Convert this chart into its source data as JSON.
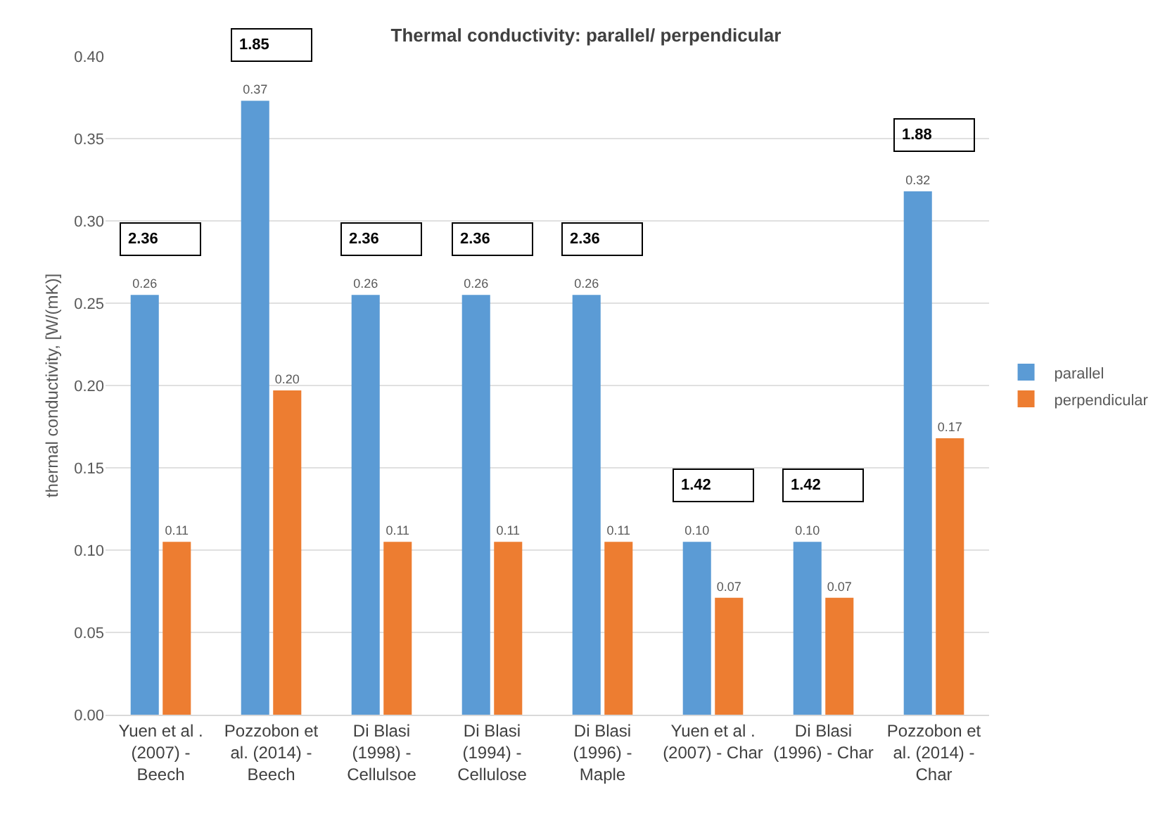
{
  "chart_data": {
    "type": "bar",
    "title": "Thermal conductivity: parallel/ perpendicular",
    "ylabel": "thermal conductivity, [W/(mK)]",
    "categories": [
      "Yuen et al . (2007) - Beech",
      "Pozzobon et al. (2014) - Beech",
      "Di Blasi (1998) - Cellulsoe",
      "Di Blasi (1994) - Cellulose",
      "Di Blasi (1996) - Maple",
      "Yuen et al . (2007) - Char",
      "Di Blasi (1996) - Char",
      "Pozzobon et al. (2014) - Char"
    ],
    "series": [
      {
        "name": "parallel",
        "color": "#5b9bd5",
        "values": [
          0.255,
          0.373,
          0.255,
          0.255,
          0.255,
          0.105,
          0.105,
          0.318
        ],
        "value_labels": [
          "0.26",
          "0.37",
          "0.26",
          "0.26",
          "0.26",
          "0.10",
          "0.10",
          "0.32"
        ]
      },
      {
        "name": "perpendicular",
        "color": "#ed7d31",
        "values": [
          0.105,
          0.197,
          0.105,
          0.105,
          0.105,
          0.071,
          0.071,
          0.168
        ],
        "value_labels": [
          "0.11",
          "0.20",
          "0.11",
          "0.11",
          "0.11",
          "0.07",
          "0.07",
          "0.17"
        ]
      }
    ],
    "annotations": [
      "2.36",
      "1.85",
      "2.36",
      "2.36",
      "2.36",
      "1.42",
      "1.42",
      "1.88"
    ],
    "ylim": [
      0,
      0.4
    ],
    "yticks": [
      {
        "value": 0,
        "label": "0.00"
      },
      0.05,
      {
        "value": 0.1,
        "label": "0.10"
      },
      0.15,
      {
        "value": 0.2,
        "label": "0.20"
      },
      0.25,
      {
        "value": 0.3,
        "label": "0.30"
      },
      0.35,
      {
        "value": 0.4,
        "label": "0.40"
      }
    ],
    "grid": "y",
    "legend": "right"
  }
}
